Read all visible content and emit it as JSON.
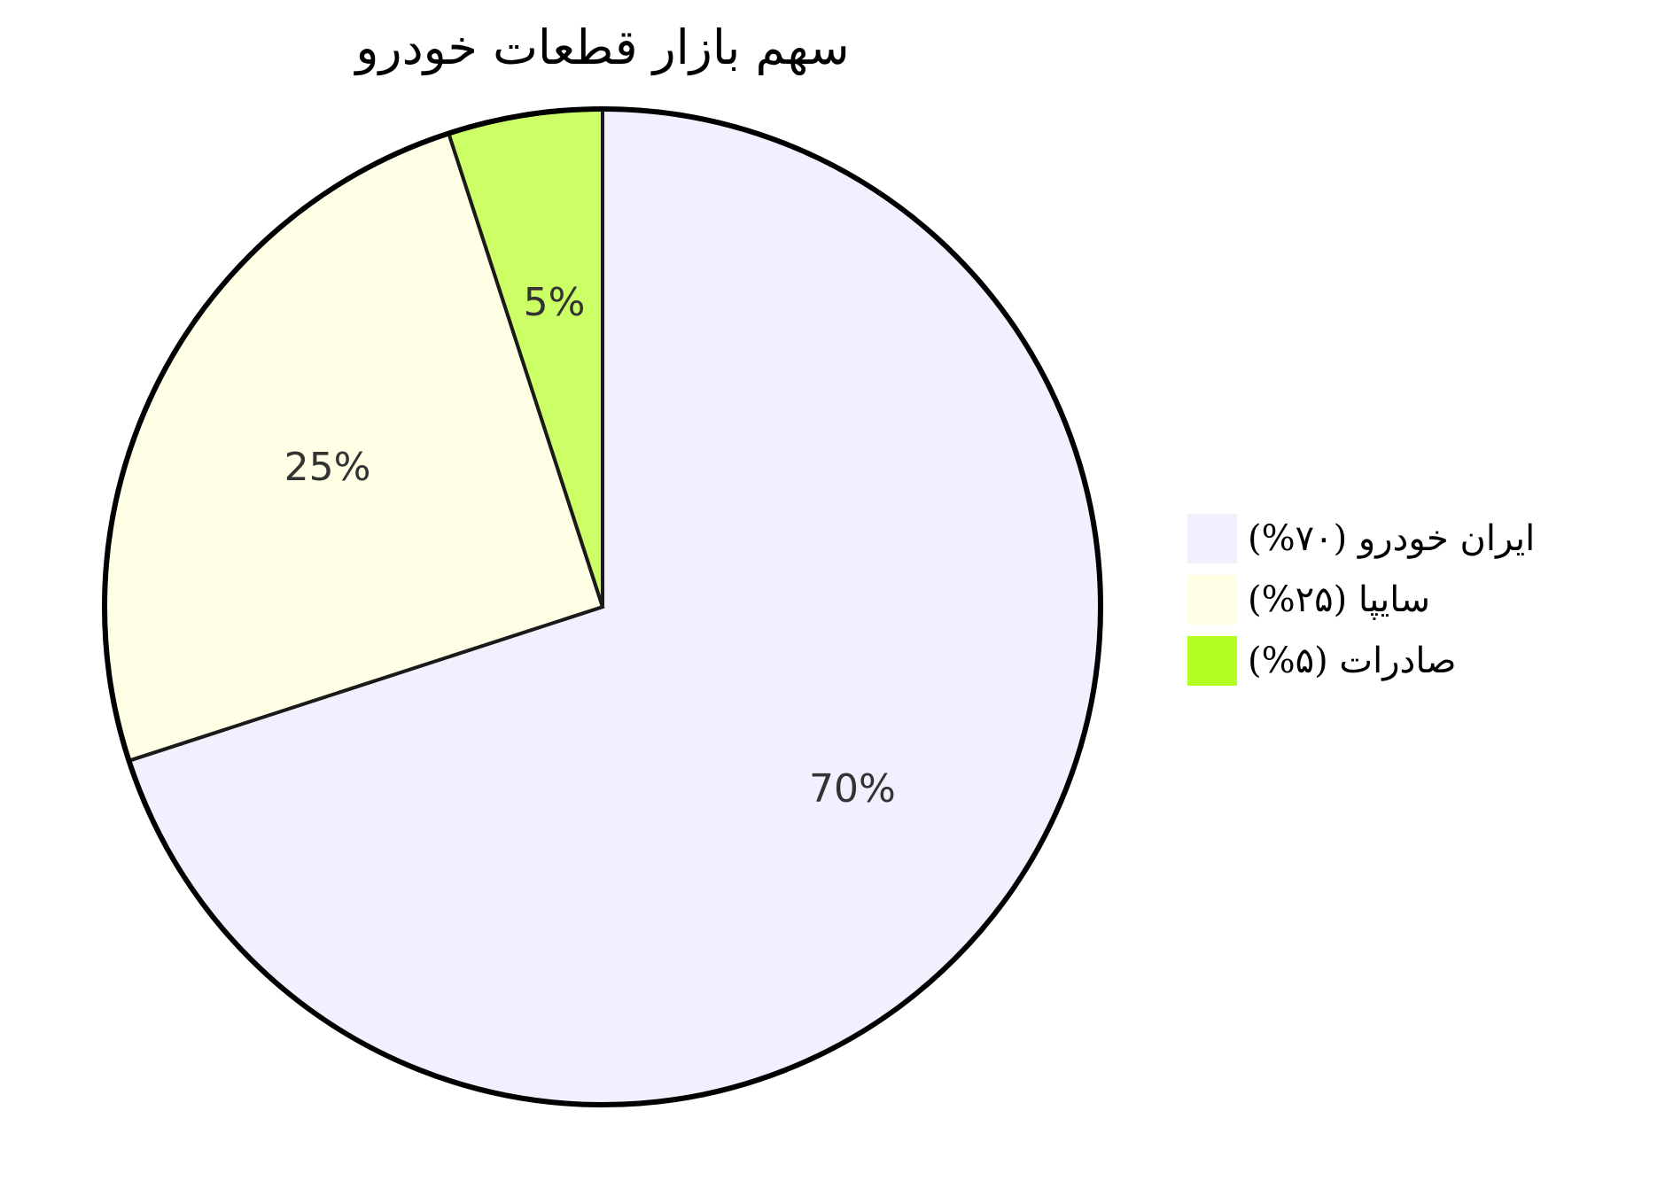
{
  "chart_data": {
    "type": "pie",
    "title": "سهم بازار قطعات خودرو",
    "start_angle_deg": 90,
    "direction": "clockwise",
    "slices": [
      {
        "value": 70,
        "label": "70%",
        "legend": "ایران خودرو (۷۰%)",
        "color": "#f0f0ff"
      },
      {
        "value": 25,
        "label": "25%",
        "legend": "سایپا (۲۵%)",
        "color": "#ffffe6"
      },
      {
        "value": 5,
        "label": "5%",
        "legend": "صادرات (۵%)",
        "color": "#ccff66",
        "legend_color": "#b3ff22"
      }
    ],
    "legend": {
      "placement": "right"
    }
  }
}
